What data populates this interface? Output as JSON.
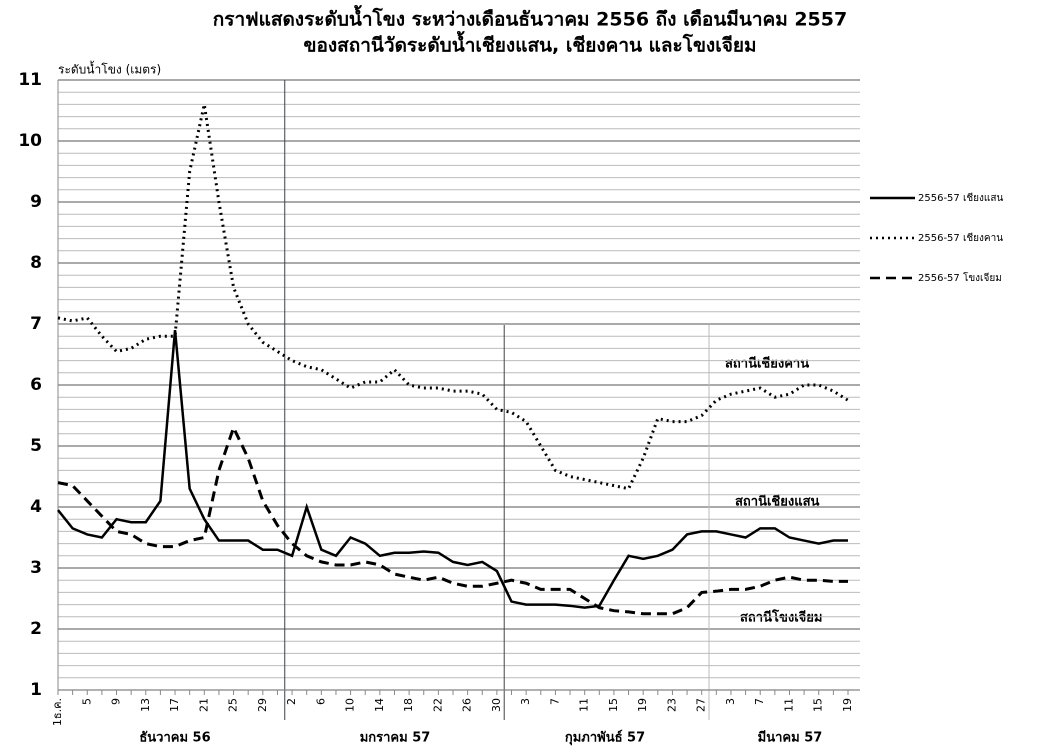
{
  "chart_data": {
    "type": "line",
    "title": "กราฟแสดงระดับน้ำโขง ระหว่างเดือนธันวาคม 2556 ถึง เดือนมีนาคม 2557",
    "subtitle": "ของสถานีวัดระดับน้ำเชียงแสน, เชียงคาน และโขงเจียม",
    "y_label": "ระดับน้ำโขง (เมตร)",
    "categories": [
      "1ธ.ค.",
      null,
      "5",
      null,
      "9",
      null,
      "13",
      null,
      "17",
      null,
      "21",
      null,
      "25",
      null,
      "29",
      null,
      "2",
      null,
      "6",
      null,
      "10",
      null,
      "14",
      null,
      "18",
      null,
      "22",
      null,
      "26",
      null,
      "30",
      null,
      "3",
      null,
      "7",
      null,
      "11",
      null,
      "15",
      null,
      "19",
      null,
      "23",
      null,
      "27",
      null,
      "3",
      null,
      "7",
      null,
      "11",
      null,
      "15",
      null,
      "19"
    ],
    "months": [
      "ธันวาคม 56",
      "มกราคม 57",
      "กุมภาพันธ์ 57",
      "มีนาคม 57"
    ],
    "series": [
      {
        "name": "2556-57 เชียงแสน",
        "color": "#000000",
        "dash": "solid",
        "values": [
          3.95,
          3.65,
          3.55,
          3.5,
          3.8,
          3.75,
          3.75,
          4.1,
          6.9,
          4.3,
          3.8,
          3.45,
          3.45,
          3.45,
          3.3,
          3.3,
          3.2,
          4.0,
          3.3,
          3.2,
          3.5,
          3.4,
          3.2,
          3.25,
          3.25,
          3.27,
          3.25,
          3.1,
          3.05,
          3.1,
          2.95,
          2.45,
          2.4,
          2.4,
          2.4,
          2.38,
          2.35,
          2.38,
          2.8,
          3.2,
          3.15,
          3.2,
          3.3,
          3.55,
          3.6,
          3.6,
          3.55,
          3.5,
          3.65,
          3.65,
          3.5,
          3.45,
          3.4,
          3.45,
          3.45
        ]
      },
      {
        "name": "2556-57 เชียงคาน",
        "color": "#000000",
        "dash": "dotted",
        "values": [
          7.1,
          7.05,
          7.1,
          6.8,
          6.55,
          6.6,
          6.75,
          6.8,
          6.8,
          9.5,
          10.6,
          9.0,
          7.6,
          7.0,
          6.7,
          6.55,
          6.4,
          6.3,
          6.25,
          6.1,
          5.95,
          6.05,
          6.05,
          6.25,
          6.0,
          5.95,
          5.95,
          5.9,
          5.9,
          5.85,
          5.6,
          5.55,
          5.4,
          5.0,
          4.6,
          4.5,
          4.45,
          4.4,
          4.35,
          4.3,
          4.8,
          5.45,
          5.4,
          5.4,
          5.5,
          5.75,
          5.85,
          5.9,
          5.95,
          5.8,
          5.85,
          6.0,
          6.0,
          5.9,
          5.75
        ]
      },
      {
        "name": "2556-57 โขงเจียม",
        "color": "#000000",
        "dash": "dashed",
        "values": [
          4.4,
          4.35,
          4.1,
          3.85,
          3.6,
          3.55,
          3.4,
          3.35,
          3.35,
          3.45,
          3.5,
          4.6,
          5.3,
          4.8,
          4.1,
          3.7,
          3.4,
          3.2,
          3.1,
          3.05,
          3.05,
          3.1,
          3.05,
          2.9,
          2.85,
          2.8,
          2.85,
          2.75,
          2.7,
          2.7,
          2.75,
          2.8,
          2.75,
          2.65,
          2.65,
          2.65,
          2.5,
          2.35,
          2.3,
          2.28,
          2.25,
          2.25,
          2.25,
          2.35,
          2.6,
          2.62,
          2.65,
          2.65,
          2.7,
          2.8,
          2.85,
          2.8,
          2.8,
          2.78,
          2.78
        ]
      }
    ],
    "annotations": [
      "สถานีเชียงคาน",
      "สถานีเชียงแสน",
      "สถานีโขงเจียม"
    ],
    "ylim": [
      1,
      11
    ],
    "yticks": [
      1,
      2,
      3,
      4,
      5,
      6,
      7,
      8,
      9,
      10,
      11
    ],
    "grid": true,
    "legend": "right"
  }
}
